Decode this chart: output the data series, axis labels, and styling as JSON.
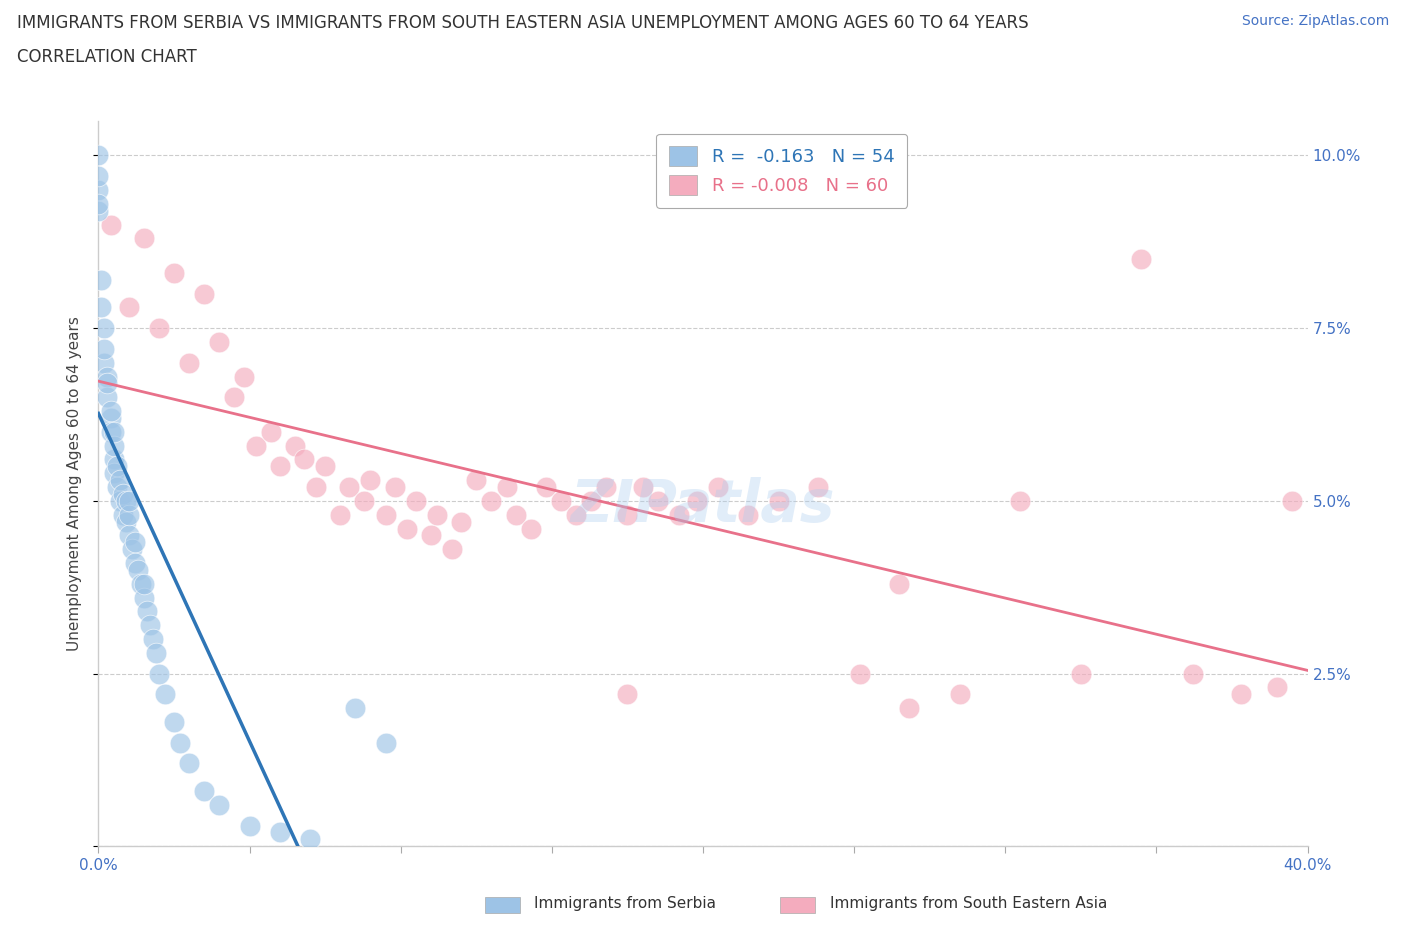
{
  "title_line1": "IMMIGRANTS FROM SERBIA VS IMMIGRANTS FROM SOUTH EASTERN ASIA UNEMPLOYMENT AMONG AGES 60 TO 64 YEARS",
  "title_line2": "CORRELATION CHART",
  "source_text": "Source: ZipAtlas.com",
  "ylabel": "Unemployment Among Ages 60 to 64 years",
  "xlim": [
    0.0,
    0.4
  ],
  "ylim": [
    0.0,
    0.105
  ],
  "xticks": [
    0.0,
    0.05,
    0.1,
    0.15,
    0.2,
    0.25,
    0.3,
    0.35,
    0.4
  ],
  "yticks": [
    0.0,
    0.025,
    0.05,
    0.075,
    0.1
  ],
  "serbia_R": -0.163,
  "serbia_N": 54,
  "sea_R": -0.008,
  "sea_N": 60,
  "serbia_color": "#9DC3E6",
  "sea_color": "#F4ACBE",
  "serbia_line_color": "#2E75B6",
  "sea_line_color": "#E8718A",
  "watermark_text": "ZIPatlas",
  "serbia_scatter_x": [
    0.0,
    0.0,
    0.0,
    0.0,
    0.0,
    0.001,
    0.001,
    0.002,
    0.002,
    0.002,
    0.003,
    0.003,
    0.003,
    0.004,
    0.004,
    0.004,
    0.005,
    0.005,
    0.005,
    0.005,
    0.006,
    0.006,
    0.007,
    0.007,
    0.008,
    0.008,
    0.009,
    0.009,
    0.01,
    0.01,
    0.01,
    0.011,
    0.012,
    0.012,
    0.013,
    0.014,
    0.015,
    0.015,
    0.016,
    0.017,
    0.018,
    0.019,
    0.02,
    0.022,
    0.025,
    0.027,
    0.03,
    0.035,
    0.04,
    0.05,
    0.06,
    0.07,
    0.085,
    0.095
  ],
  "serbia_scatter_y": [
    0.095,
    0.1,
    0.092,
    0.097,
    0.093,
    0.082,
    0.078,
    0.075,
    0.07,
    0.072,
    0.068,
    0.065,
    0.067,
    0.062,
    0.06,
    0.063,
    0.056,
    0.058,
    0.054,
    0.06,
    0.052,
    0.055,
    0.05,
    0.053,
    0.048,
    0.051,
    0.047,
    0.05,
    0.045,
    0.048,
    0.05,
    0.043,
    0.041,
    0.044,
    0.04,
    0.038,
    0.036,
    0.038,
    0.034,
    0.032,
    0.03,
    0.028,
    0.025,
    0.022,
    0.018,
    0.015,
    0.012,
    0.008,
    0.006,
    0.003,
    0.002,
    0.001,
    0.02,
    0.015
  ],
  "sea_scatter_x": [
    0.004,
    0.01,
    0.015,
    0.02,
    0.025,
    0.03,
    0.035,
    0.04,
    0.045,
    0.048,
    0.052,
    0.057,
    0.06,
    0.065,
    0.068,
    0.072,
    0.075,
    0.08,
    0.083,
    0.088,
    0.09,
    0.095,
    0.098,
    0.102,
    0.105,
    0.11,
    0.112,
    0.117,
    0.12,
    0.125,
    0.13,
    0.135,
    0.138,
    0.143,
    0.148,
    0.153,
    0.158,
    0.163,
    0.168,
    0.175,
    0.18,
    0.185,
    0.192,
    0.198,
    0.205,
    0.215,
    0.225,
    0.238,
    0.252,
    0.268,
    0.285,
    0.305,
    0.325,
    0.345,
    0.362,
    0.378,
    0.39,
    0.395,
    0.175,
    0.265
  ],
  "sea_scatter_y": [
    0.09,
    0.078,
    0.088,
    0.075,
    0.083,
    0.07,
    0.08,
    0.073,
    0.065,
    0.068,
    0.058,
    0.06,
    0.055,
    0.058,
    0.056,
    0.052,
    0.055,
    0.048,
    0.052,
    0.05,
    0.053,
    0.048,
    0.052,
    0.046,
    0.05,
    0.045,
    0.048,
    0.043,
    0.047,
    0.053,
    0.05,
    0.052,
    0.048,
    0.046,
    0.052,
    0.05,
    0.048,
    0.05,
    0.052,
    0.048,
    0.052,
    0.05,
    0.048,
    0.05,
    0.052,
    0.048,
    0.05,
    0.052,
    0.025,
    0.02,
    0.022,
    0.05,
    0.025,
    0.085,
    0.025,
    0.022,
    0.023,
    0.05,
    0.022,
    0.038
  ]
}
